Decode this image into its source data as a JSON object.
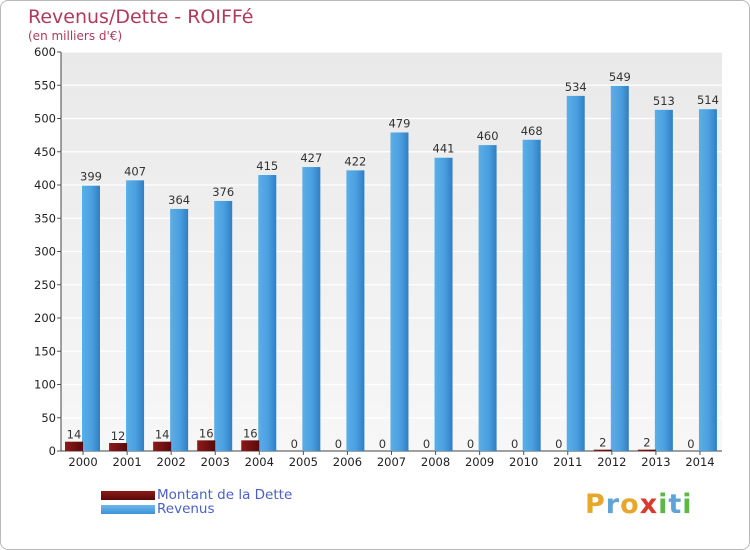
{
  "chart_data": {
    "type": "bar",
    "title": "Revenus/Dette - ROIFFé",
    "subtitle": "(en milliers d'€)",
    "xlabel": "",
    "ylabel": "",
    "ylim": [
      0,
      600
    ],
    "yticks": [
      0,
      50,
      100,
      150,
      200,
      250,
      300,
      350,
      400,
      450,
      500,
      550,
      600
    ],
    "grid": true,
    "categories": [
      "2000",
      "2001",
      "2002",
      "2003",
      "2004",
      "2005",
      "2006",
      "2007",
      "2008",
      "2009",
      "2010",
      "2011",
      "2012",
      "2013",
      "2014"
    ],
    "series": [
      {
        "name": "Montant de la Dette",
        "color": "#7a1010",
        "values": [
          14,
          12,
          14,
          16,
          16,
          0,
          0,
          0,
          0,
          0,
          0,
          0,
          2,
          2,
          0
        ]
      },
      {
        "name": "Revenus",
        "color": "#4fa3e0",
        "values": [
          399,
          407,
          364,
          376,
          415,
          427,
          422,
          479,
          441,
          460,
          468,
          534,
          549,
          513,
          514
        ]
      }
    ],
    "legend_position": "bottom-left"
  },
  "brand": {
    "letters": [
      "P",
      "r",
      "o",
      "x",
      "i",
      "t",
      "i"
    ],
    "colors": [
      "#e8a62b",
      "#5fa3d8",
      "#e8a62b",
      "#d93a2b",
      "#5fb845",
      "#5fa3d8",
      "#5fb845"
    ]
  }
}
